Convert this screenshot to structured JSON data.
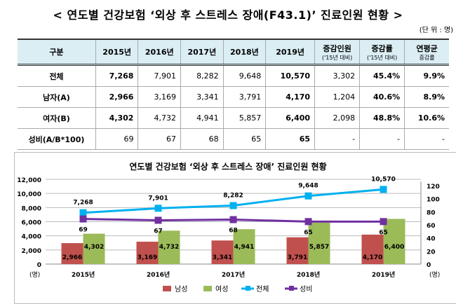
{
  "title": "< 연도별 건강보험 ‘외상 후 스트레스 장애(F43.1)’ 진료인원 현황 >",
  "unit": "(단 위 : 명)",
  "table": {
    "headers": [
      {
        "main": "구분"
      },
      {
        "main": "2015년"
      },
      {
        "main": "2016년"
      },
      {
        "main": "2017년"
      },
      {
        "main": "2018년"
      },
      {
        "main": "2019년"
      },
      {
        "main": "증감인원",
        "sub": "('15년 대비)"
      },
      {
        "main": "증감률",
        "sub": "('15년 대비)"
      },
      {
        "main": "연평균",
        "sub": "증감률"
      }
    ],
    "rows": [
      [
        "전체",
        "7,268",
        "7,901",
        "8,282",
        "9,648",
        "10,570",
        "3,302",
        "45.4%",
        "9.9%"
      ],
      [
        "남자(A)",
        "2,966",
        "3,169",
        "3,341",
        "3,791",
        "4,170",
        "1,204",
        "40.6%",
        "8.9%"
      ],
      [
        "여자(B)",
        "4,302",
        "4,732",
        "4,941",
        "5,857",
        "6,400",
        "2,098",
        "48.8%",
        "10.6%"
      ],
      [
        "성비(A/B*100)",
        "69",
        "67",
        "68",
        "65",
        "65",
        "-",
        "-",
        "-"
      ]
    ]
  },
  "chart_data": {
    "type": "bar+line",
    "title": "연도별 건강보험 ‘외상 후 스트레스 장애’ 진료인원 현황",
    "categories": [
      "2015년",
      "2016년",
      "2017년",
      "2018년",
      "2019년"
    ],
    "y_left": {
      "label": "(명)",
      "range": [
        0,
        12000
      ],
      "ticks": [
        "0",
        "2,000",
        "4,000",
        "6,000",
        "8,000",
        "10,000",
        "12,000"
      ]
    },
    "y_right": {
      "label": "(명)",
      "range": [
        0,
        120
      ],
      "ticks": [
        "0",
        "20",
        "40",
        "60",
        "80",
        "100",
        "120"
      ]
    },
    "grid": true,
    "legend": "bottom",
    "series": [
      {
        "name": "남성",
        "kind": "bar",
        "axis": "left",
        "color": "#c0504d",
        "values": [
          2966,
          3169,
          3341,
          3791,
          4170
        ],
        "labels": [
          "2,966",
          "3,169",
          "3,341",
          "3,791",
          "4,170"
        ]
      },
      {
        "name": "여성",
        "kind": "bar",
        "axis": "left",
        "color": "#9bbb59",
        "values": [
          4302,
          4732,
          4941,
          5857,
          6400
        ],
        "labels": [
          "4,302",
          "4,732",
          "4,941",
          "5,857",
          "6,400"
        ]
      },
      {
        "name": "전체",
        "kind": "line",
        "axis": "left",
        "color": "#00b0f0",
        "values": [
          7268,
          7901,
          8282,
          9648,
          10570
        ],
        "labels": [
          "7,268",
          "7,901",
          "8,282",
          "9,648",
          "10,570"
        ]
      },
      {
        "name": "성비",
        "kind": "line",
        "axis": "right",
        "color": "#7030a0",
        "values": [
          69,
          67,
          68,
          65,
          65
        ],
        "labels": [
          "69",
          "67",
          "68",
          "65",
          "65"
        ]
      }
    ]
  }
}
